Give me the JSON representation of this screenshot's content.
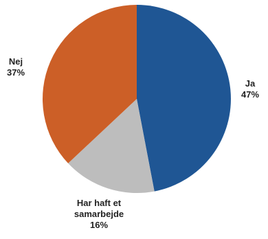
{
  "chart_data": {
    "type": "pie",
    "slices": [
      {
        "label": "Ja",
        "value": 47,
        "value_label": "47%",
        "color": "#1f5694"
      },
      {
        "label": "Har haft et samarbejde",
        "label_lines": [
          "Har haft et",
          "samarbejde"
        ],
        "value": 16,
        "value_label": "16%",
        "color": "#bdbdbd"
      },
      {
        "label": "Nej",
        "value": 37,
        "value_label": "37%",
        "color": "#cc5f27"
      }
    ],
    "start_angle_deg": 0,
    "direction": "clockwise",
    "legend": "none",
    "labels_position": "outside"
  }
}
